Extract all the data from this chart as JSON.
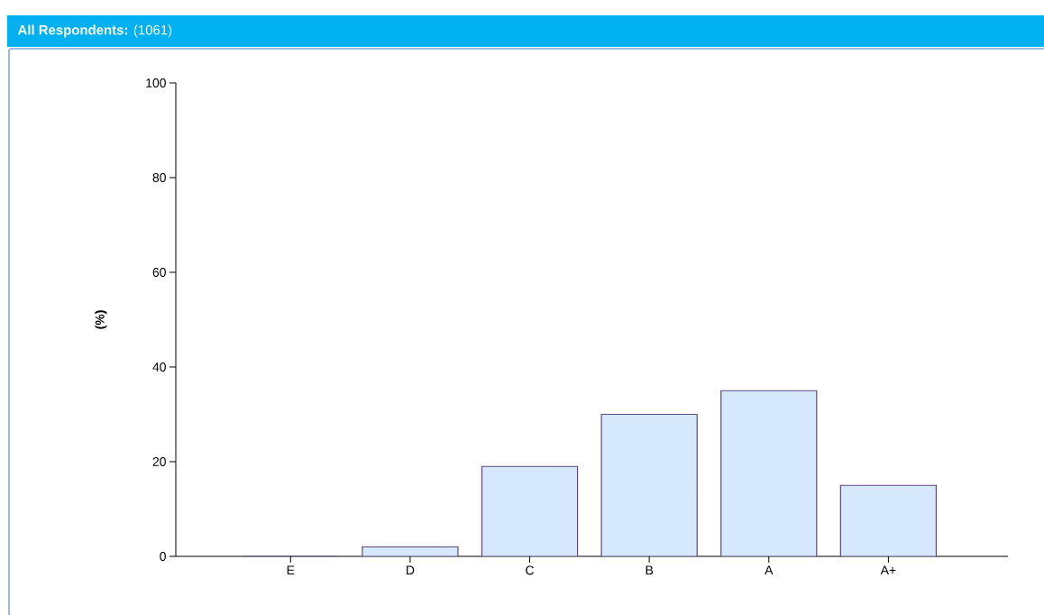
{
  "chart_data": {
    "type": "bar",
    "title": "**All Respondents:** (1061)",
    "ylabel": "(%)",
    "categories": [
      "E",
      "D",
      "C",
      "B",
      "A",
      "A+"
    ],
    "values": [
      0,
      2,
      19,
      30,
      35,
      15
    ],
    "color": "#d6e8fc",
    "ylim": [
      0,
      100
    ],
    "yticks": [
      0,
      20,
      40,
      60,
      80,
      100
    ]
  }
}
